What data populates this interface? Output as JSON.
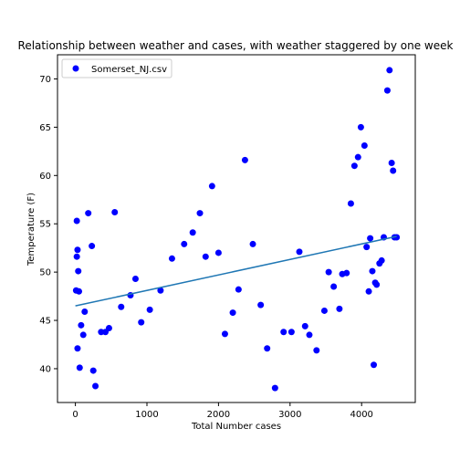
{
  "chart_data": {
    "type": "scatter",
    "title": "Relationship between weather and cases, with weather staggered by one week",
    "xlabel": "Total Number cases",
    "ylabel": "Temperature (F)",
    "xlim": [
      -250,
      4750
    ],
    "ylim": [
      36.5,
      72.5
    ],
    "xticks": [
      0,
      1000,
      2000,
      3000,
      4000
    ],
    "xtick_labels": [
      "0",
      "1000",
      "2000",
      "3000",
      "4000"
    ],
    "yticks": [
      40,
      45,
      50,
      55,
      60,
      65,
      70
    ],
    "ytick_labels": [
      "40",
      "45",
      "50",
      "55",
      "60",
      "65",
      "70"
    ],
    "legend": {
      "position": "top-left",
      "entries": [
        "Somerset_NJ.csv"
      ]
    },
    "grid": false,
    "series": [
      {
        "name": "Somerset_NJ.csv",
        "kind": "scatter",
        "color": "#0000ff",
        "x": [
          10,
          20,
          20,
          30,
          30,
          40,
          50,
          60,
          80,
          110,
          130,
          180,
          230,
          250,
          280,
          360,
          420,
          470,
          550,
          640,
          770,
          840,
          920,
          1040,
          1190,
          1350,
          1520,
          1640,
          1740,
          1820,
          1910,
          2000,
          2090,
          2200,
          2280,
          2370,
          2480,
          2590,
          2680,
          2790,
          2910,
          3020,
          3130,
          3210,
          3270,
          3370,
          3480,
          3540,
          3610,
          3690,
          3730,
          3790,
          3850,
          3900,
          3950,
          3990,
          4040,
          4070,
          4100,
          4120,
          4150,
          4170,
          4190,
          4210,
          4250,
          4280,
          4310,
          4360,
          4390,
          4420,
          4440,
          4460,
          4490
        ],
        "y": [
          48.1,
          51.6,
          55.3,
          52.3,
          42.1,
          50.1,
          48.0,
          40.1,
          44.5,
          43.5,
          45.9,
          56.1,
          52.7,
          39.8,
          38.2,
          43.8,
          43.8,
          44.2,
          56.2,
          46.4,
          47.6,
          49.3,
          44.8,
          46.1,
          48.1,
          51.4,
          52.9,
          54.1,
          56.1,
          51.6,
          58.9,
          52.0,
          43.6,
          45.8,
          48.2,
          61.6,
          52.9,
          46.6,
          42.1,
          38.0,
          43.8,
          43.8,
          52.1,
          44.4,
          43.5,
          41.9,
          46.0,
          50.0,
          48.5,
          46.2,
          49.8,
          49.9,
          57.1,
          61.0,
          61.9,
          65.0,
          63.1,
          52.6,
          48.0,
          53.5,
          50.1,
          40.4,
          48.9,
          48.7,
          50.9,
          51.2,
          53.6,
          68.8,
          70.9,
          61.3,
          60.5,
          53.6,
          53.6
        ]
      },
      {
        "name": "",
        "kind": "line",
        "color": "#1f77b4",
        "x": [
          0,
          4490
        ],
        "y": [
          46.5,
          53.7
        ]
      }
    ]
  }
}
